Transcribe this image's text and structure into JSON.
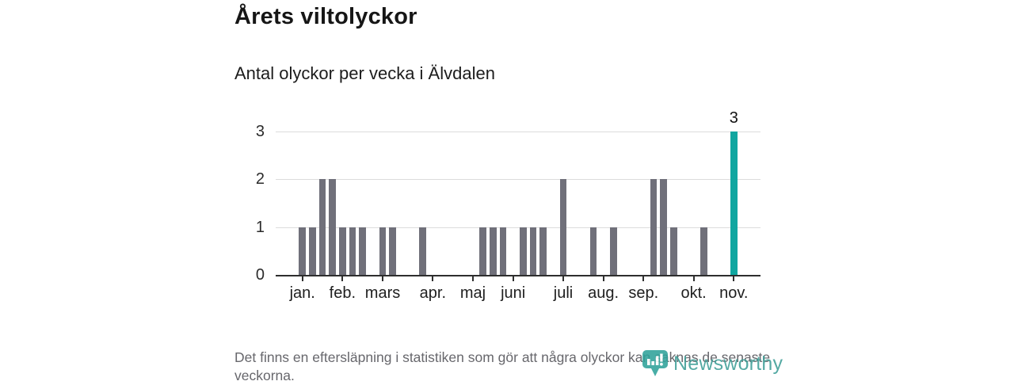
{
  "title": "Årets viltolyckor",
  "subtitle": "Antal olyckor per vecka i Älvdalen",
  "footnote": "Det finns en eftersläpning i statistiken som gör att några olyckor kan saknas de senaste veckorna.",
  "branding": {
    "name": "Newsworthy",
    "icon": "newsworthy-bubble-chart-icon",
    "color": "#3d9e97"
  },
  "colors": {
    "bar": "#70707a",
    "highlight": "#10a6a0",
    "grid": "#dcdcdc",
    "axis": "#2e2e2e",
    "text": "#1c1c1c",
    "muted": "#67676c"
  },
  "chart_data": {
    "type": "bar",
    "title": "Årets viltolyckor",
    "subtitle": "Antal olyckor per vecka i Älvdalen",
    "x_unit": "week",
    "x_start_week": 1,
    "values": [
      1,
      1,
      2,
      2,
      1,
      1,
      1,
      0,
      1,
      1,
      0,
      0,
      1,
      0,
      0,
      0,
      0,
      0,
      1,
      1,
      1,
      0,
      1,
      1,
      1,
      0,
      2,
      0,
      0,
      1,
      0,
      1,
      0,
      0,
      0,
      2,
      2,
      1,
      0,
      0,
      1,
      0,
      0,
      3
    ],
    "highlight_week": 44,
    "value_label": {
      "week": 44,
      "text": "3"
    },
    "y_ticks": [
      0,
      1,
      2,
      3
    ],
    "ylim": [
      0,
      3
    ],
    "x_ticks": [
      {
        "label": "jan.",
        "week": 1
      },
      {
        "label": "feb.",
        "week": 5
      },
      {
        "label": "mars",
        "week": 9
      },
      {
        "label": "apr.",
        "week": 14
      },
      {
        "label": "maj",
        "week": 18
      },
      {
        "label": "juni",
        "week": 22
      },
      {
        "label": "juli",
        "week": 27
      },
      {
        "label": "aug.",
        "week": 31
      },
      {
        "label": "sep.",
        "week": 35
      },
      {
        "label": "okt.",
        "week": 40
      },
      {
        "label": "nov.",
        "week": 44
      }
    ],
    "grid": true,
    "legend": false
  }
}
